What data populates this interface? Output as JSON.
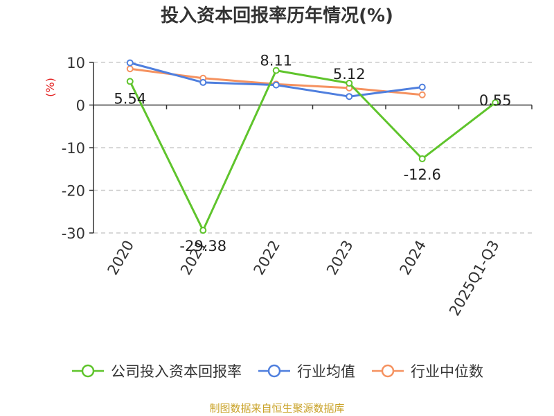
{
  "chart_data": {
    "type": "line",
    "title": "投入资本回报率历年情况(%)",
    "ylabel": "(%)",
    "xlabel": "",
    "categories": [
      "2020",
      "2021",
      "2022",
      "2023",
      "2024",
      "2025Q1-Q3"
    ],
    "ylim": [
      -30,
      10
    ],
    "yticks": [
      10,
      0,
      -10,
      -20,
      -30
    ],
    "grid": true,
    "legend_position": "bottom",
    "series": [
      {
        "name": "公司投入资本回报率",
        "color": "#5fc42c",
        "values": [
          5.54,
          -29.38,
          8.11,
          5.12,
          -12.6,
          0.55
        ],
        "labels": [
          "5.54",
          "-29.38",
          "8.11",
          "5.12",
          "-12.6",
          "0.55"
        ]
      },
      {
        "name": "行业均值",
        "color": "#4f7fde",
        "values": [
          9.9,
          5.3,
          4.7,
          2.0,
          4.2,
          null
        ]
      },
      {
        "name": "行业中位数",
        "color": "#f59260",
        "values": [
          8.5,
          6.3,
          4.9,
          4.0,
          2.4,
          null
        ]
      }
    ]
  },
  "source": {
    "text": "制图数据来自恒生聚源数据库",
    "color": "#c9a227"
  },
  "ylabel_color": "#e32020"
}
